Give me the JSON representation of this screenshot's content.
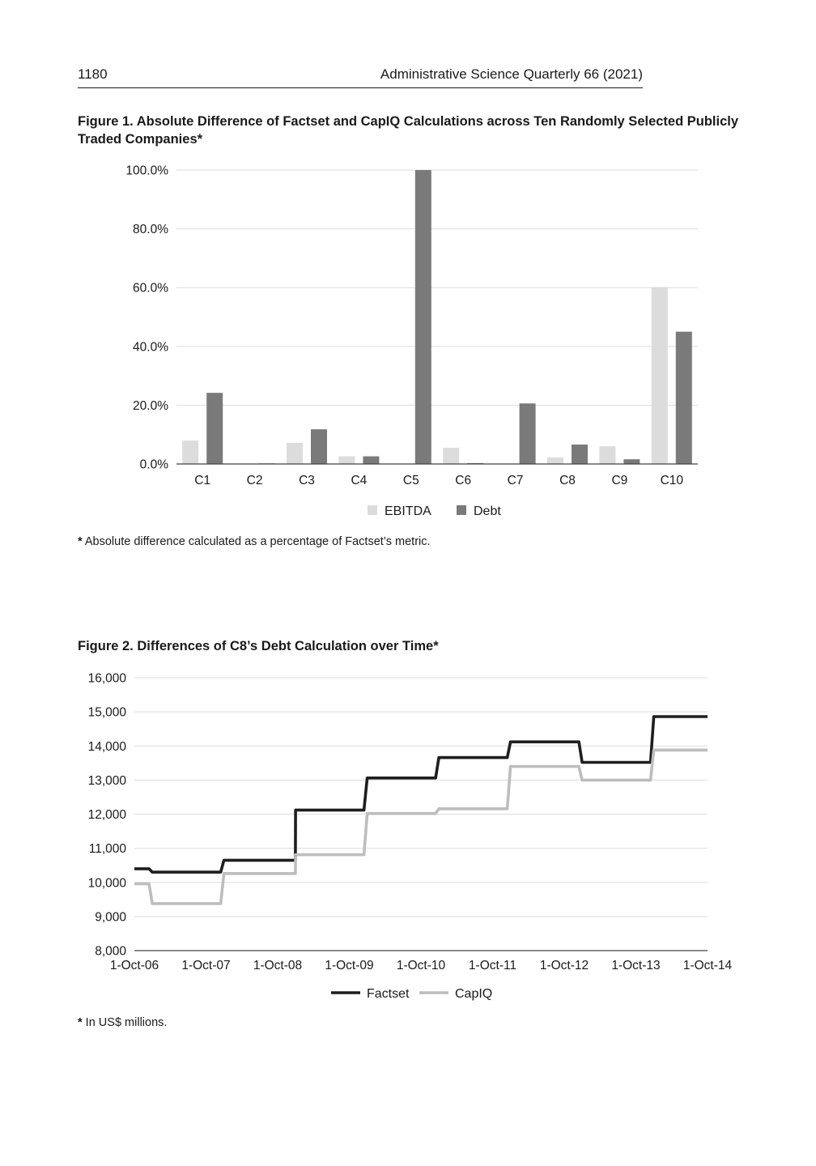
{
  "header": {
    "page_number": "1180",
    "journal": "Administrative Science Quarterly 66 (2021)"
  },
  "figure1": {
    "caption": "Figure 1.  Absolute Difference of Factset and CapIQ Calculations across Ten Randomly Selected Publicly Traded Companies*",
    "note_star": "*",
    "note_text": " Absolute difference calculated as a percentage of Factset’s metric."
  },
  "figure2": {
    "caption": "Figure 2.  Differences of C8’s Debt Calculation over Time*",
    "note_star": "*",
    "note_text": " In US$ millions."
  },
  "chart_data": [
    {
      "type": "bar",
      "title": "Figure 1.  Absolute Difference of Factset and CapIQ Calculations across Ten Randomly Selected Publicly Traded Companies*",
      "categories": [
        "C1",
        "C2",
        "C3",
        "C4",
        "C5",
        "C6",
        "C7",
        "C8",
        "C9",
        "C10"
      ],
      "series": [
        {
          "name": "EBITDA",
          "color": "#dcdcdc",
          "values": [
            8.0,
            0.0,
            7.2,
            2.6,
            0.0,
            5.5,
            0.0,
            2.2,
            6.0,
            60.2
          ]
        },
        {
          "name": "Debt",
          "color": "#7a7a7a",
          "values": [
            24.2,
            0.2,
            11.8,
            2.6,
            100.0,
            0.3,
            20.6,
            6.6,
            1.6,
            45.0
          ]
        }
      ],
      "ylim": [
        0,
        100
      ],
      "yticks": [
        "0.0%",
        "20.0%",
        "40.0%",
        "60.0%",
        "80.0%",
        "100.0%"
      ],
      "legend": "bottom",
      "grid": true
    },
    {
      "type": "line",
      "title": "Figure 2.  Differences of C8’s Debt Calculation over Time*",
      "x_ticks": [
        "1-Oct-06",
        "1-Oct-07",
        "1-Oct-08",
        "1-Oct-09",
        "1-Oct-10",
        "1-Oct-11",
        "1-Oct-12",
        "1-Oct-13",
        "1-Oct-14"
      ],
      "ylim": [
        8000,
        16000
      ],
      "yticks": [
        "8,000",
        "9,000",
        "10,000",
        "11,000",
        "12,000",
        "13,000",
        "14,000",
        "15,000",
        "16,000"
      ],
      "legend": "bottom",
      "grid": true,
      "series": [
        {
          "name": "Factset",
          "color": "#1e1e1e",
          "points": [
            [
              "2006-10-01",
              10400
            ],
            [
              "2006-12-15",
              10400
            ],
            [
              "2007-01-01",
              10300
            ],
            [
              "2007-12-15",
              10300
            ],
            [
              "2008-01-01",
              10650
            ],
            [
              "2008-12-31",
              10650
            ],
            [
              "2009-01-01",
              12120
            ],
            [
              "2009-12-15",
              12120
            ],
            [
              "2010-01-01",
              13060
            ],
            [
              "2010-12-15",
              13060
            ],
            [
              "2011-01-01",
              13660
            ],
            [
              "2011-12-15",
              13660
            ],
            [
              "2012-01-01",
              14120
            ],
            [
              "2012-12-15",
              14120
            ],
            [
              "2013-01-01",
              13520
            ],
            [
              "2013-12-15",
              13520
            ],
            [
              "2014-01-01",
              14860
            ],
            [
              "2014-10-01",
              14860
            ]
          ]
        },
        {
          "name": "CapIQ",
          "color": "#bdbdbd",
          "points": [
            [
              "2006-10-01",
              9960
            ],
            [
              "2006-12-15",
              9960
            ],
            [
              "2007-01-01",
              9380
            ],
            [
              "2007-12-15",
              9380
            ],
            [
              "2008-01-01",
              10260
            ],
            [
              "2008-12-31",
              10260
            ],
            [
              "2009-01-01",
              10810
            ],
            [
              "2009-12-15",
              10810
            ],
            [
              "2010-01-01",
              12020
            ],
            [
              "2010-12-15",
              12020
            ],
            [
              "2011-01-01",
              12160
            ],
            [
              "2011-12-15",
              12160
            ],
            [
              "2012-01-01",
              13400
            ],
            [
              "2012-12-15",
              13400
            ],
            [
              "2013-01-01",
              13000
            ],
            [
              "2013-12-15",
              13000
            ],
            [
              "2014-01-01",
              13880
            ],
            [
              "2014-10-01",
              13880
            ]
          ]
        }
      ]
    }
  ]
}
